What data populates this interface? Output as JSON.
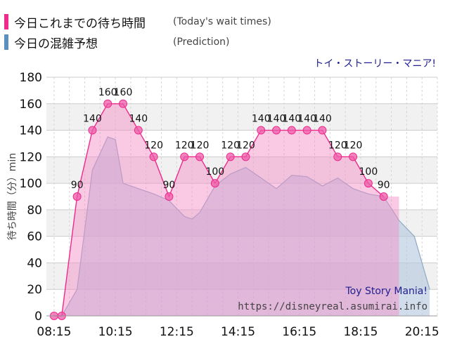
{
  "legend": {
    "actual_label": "今日これまでの待ち時間",
    "actual_sub": "(Today's wait times)",
    "actual_color": "#ee2a8c",
    "prediction_label": "今日の混雑予想",
    "prediction_sub": "(Prediction)",
    "prediction_color": "#5b8fbf"
  },
  "watermark": {
    "attraction": "Toy Story Mania!",
    "site": "https://disneyreal.asumirai.info"
  },
  "chart_data": {
    "type": "area",
    "title": "トイ・ストーリー・マニア!",
    "ylabel": "待ち時間（分）min",
    "xlabel": "",
    "ylim": [
      0,
      180
    ],
    "yticks": [
      0,
      20,
      40,
      60,
      80,
      100,
      120,
      140,
      160,
      180
    ],
    "xlim": [
      "08:00",
      "20:45"
    ],
    "xticks": [
      "08:15",
      "10:15",
      "12:15",
      "14:15",
      "16:15",
      "18:15",
      "20:15"
    ],
    "grid": true,
    "series": [
      {
        "name": "今日これまでの待ち時間",
        "style": "area+markers",
        "x": [
          "08:15",
          "08:30",
          "09:00",
          "09:30",
          "10:00",
          "10:30",
          "11:00",
          "11:30",
          "12:00",
          "12:30",
          "13:00",
          "13:30",
          "14:00",
          "14:30",
          "15:00",
          "15:30",
          "16:00",
          "16:30",
          "17:00",
          "17:30",
          "18:00",
          "18:30",
          "19:00",
          "19:30"
        ],
        "values": [
          0,
          0,
          90,
          140,
          160,
          160,
          140,
          120,
          90,
          120,
          120,
          100,
          120,
          120,
          140,
          140,
          140,
          140,
          140,
          120,
          120,
          100,
          90,
          null
        ],
        "labels_shown": [
          false,
          false,
          true,
          true,
          true,
          true,
          true,
          true,
          true,
          true,
          true,
          true,
          true,
          true,
          true,
          true,
          true,
          true,
          true,
          true,
          true,
          true,
          true,
          false
        ]
      },
      {
        "name": "今日の混雑予想",
        "style": "area",
        "x": [
          "08:15",
          "08:30",
          "09:00",
          "09:30",
          "10:00",
          "10:15",
          "10:30",
          "11:00",
          "11:30",
          "12:00",
          "12:30",
          "12:45",
          "13:00",
          "13:30",
          "14:00",
          "14:30",
          "15:00",
          "15:30",
          "16:00",
          "16:30",
          "17:00",
          "17:30",
          "18:00",
          "18:30",
          "19:00",
          "19:30",
          "20:00",
          "20:30"
        ],
        "values": [
          0,
          0,
          20,
          110,
          135,
          133,
          100,
          96,
          92,
          87,
          75,
          73,
          78,
          98,
          107,
          112,
          104,
          96,
          106,
          105,
          98,
          104,
          96,
          92,
          90,
          72,
          60,
          20
        ]
      }
    ]
  }
}
